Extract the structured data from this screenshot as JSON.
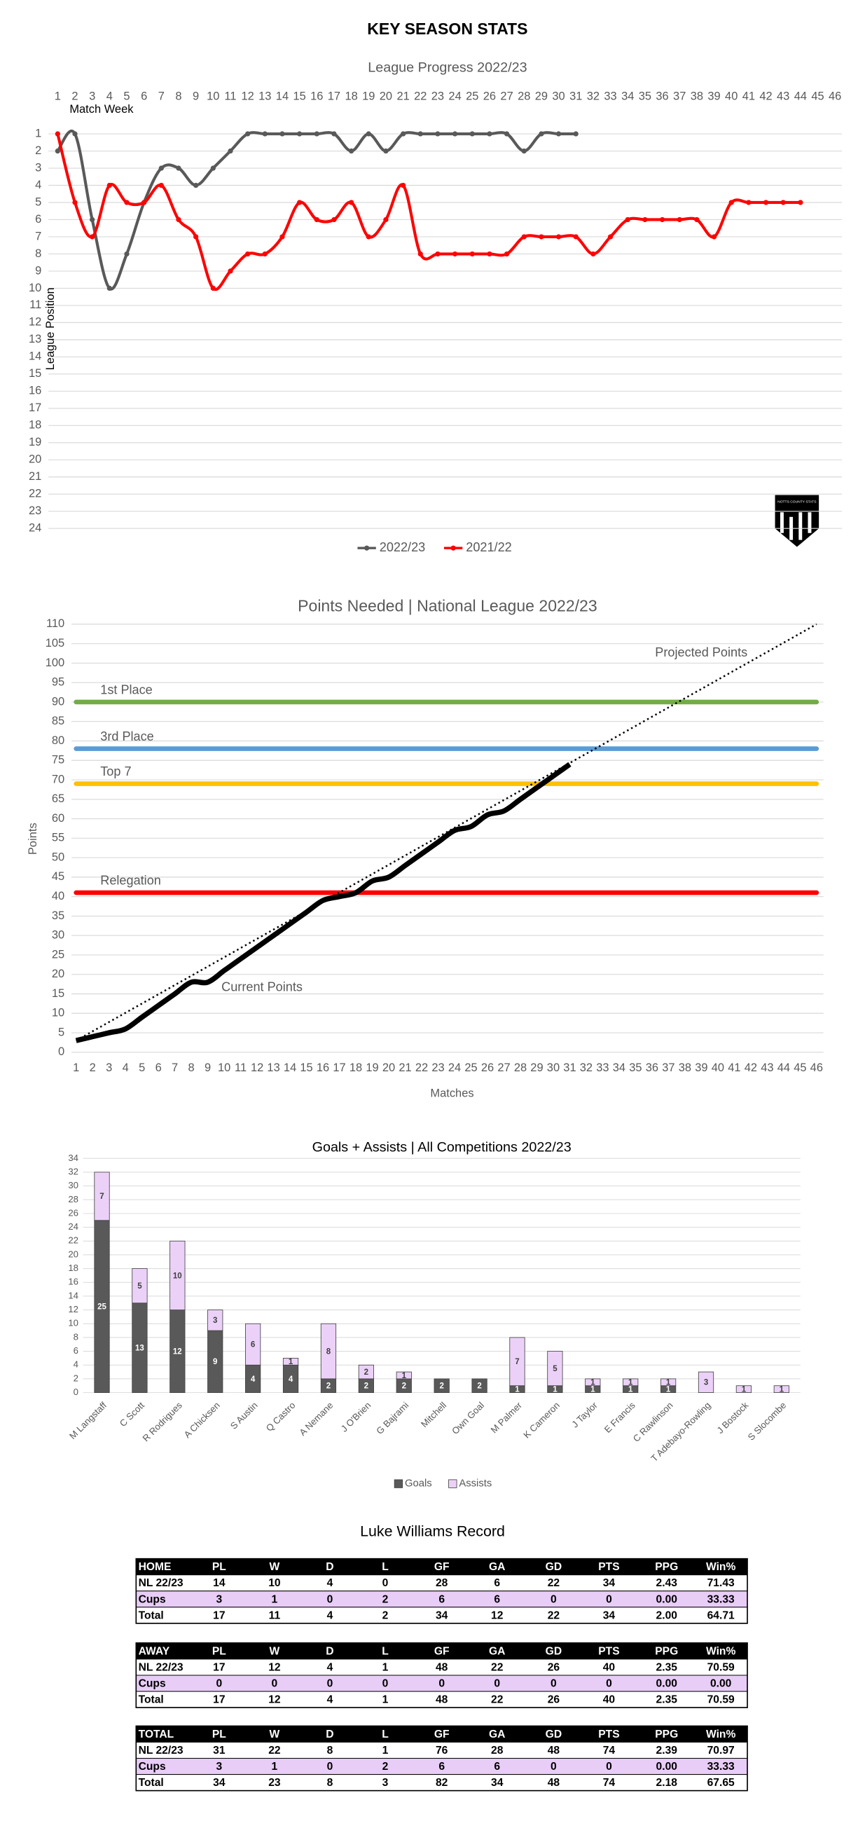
{
  "title": "KEY SEASON STATS",
  "chart_data": [
    {
      "type": "line",
      "title": "League Progress 2022/23",
      "x_label": "Match Week",
      "y_label": "League Position",
      "x": [
        1,
        2,
        3,
        4,
        5,
        6,
        7,
        8,
        9,
        10,
        11,
        12,
        13,
        14,
        15,
        16,
        17,
        18,
        19,
        20,
        21,
        22,
        23,
        24,
        25,
        26,
        27,
        28,
        29,
        30,
        31,
        32,
        33,
        34,
        35,
        36,
        37,
        38,
        39,
        40,
        41,
        42,
        43,
        44,
        45,
        46
      ],
      "xlim": [
        1,
        46
      ],
      "xticks": [
        1,
        2,
        3,
        4,
        5,
        6,
        7,
        8,
        9,
        10,
        11,
        12,
        13,
        14,
        15,
        16,
        17,
        18,
        19,
        20,
        21,
        22,
        23,
        24,
        25,
        26,
        27,
        28,
        29,
        30,
        31,
        32,
        33,
        34,
        35,
        36,
        37,
        38,
        39,
        40,
        41,
        42,
        43,
        44,
        45,
        46
      ],
      "ylim": [
        1,
        24
      ],
      "yticks": [
        1,
        2,
        3,
        4,
        5,
        6,
        7,
        8,
        9,
        10,
        11,
        12,
        13,
        14,
        15,
        16,
        17,
        18,
        19,
        20,
        21,
        22,
        23,
        24
      ],
      "y_inverted": true,
      "grid": true,
      "markers": true,
      "legend": "bottom",
      "logo_text": "NOTTS COUNTY STATS",
      "series": [
        {
          "name": "2022/23",
          "color": "#595959",
          "values": [
            2,
            1,
            6,
            10,
            8,
            5,
            3,
            3,
            4,
            3,
            2,
            1,
            1,
            1,
            1,
            1,
            1,
            2,
            1,
            2,
            1,
            1,
            1,
            1,
            1,
            1,
            1,
            2,
            1,
            1,
            1,
            null,
            null,
            null,
            null,
            null,
            null,
            null,
            null,
            null,
            null,
            null,
            null,
            null,
            null,
            null
          ]
        },
        {
          "name": "2021/22",
          "color": "#ff0000",
          "values": [
            1,
            5,
            7,
            4,
            5,
            5,
            4,
            6,
            7,
            10,
            9,
            8,
            8,
            7,
            5,
            6,
            6,
            5,
            7,
            6,
            4,
            8,
            8,
            8,
            8,
            8,
            8,
            7,
            7,
            7,
            7,
            8,
            7,
            6,
            6,
            6,
            6,
            6,
            7,
            5,
            5,
            5,
            5,
            5,
            null,
            null
          ]
        }
      ]
    },
    {
      "type": "line",
      "title": "Points Needed | National League 2022/23",
      "x_label": "Matches",
      "y_label": "Points",
      "x": [
        1,
        2,
        3,
        4,
        5,
        6,
        7,
        8,
        9,
        10,
        11,
        12,
        13,
        14,
        15,
        16,
        17,
        18,
        19,
        20,
        21,
        22,
        23,
        24,
        25,
        26,
        27,
        28,
        29,
        30,
        31,
        32,
        33,
        34,
        35,
        36,
        37,
        38,
        39,
        40,
        41,
        42,
        43,
        44,
        45,
        46
      ],
      "xlim": [
        1,
        46
      ],
      "xticks": [
        1,
        2,
        3,
        4,
        5,
        6,
        7,
        8,
        9,
        10,
        11,
        12,
        13,
        14,
        15,
        16,
        17,
        18,
        19,
        20,
        21,
        22,
        23,
        24,
        25,
        26,
        27,
        28,
        29,
        30,
        31,
        32,
        33,
        34,
        35,
        36,
        37,
        38,
        39,
        40,
        41,
        42,
        43,
        44,
        45,
        46
      ],
      "ylim": [
        0,
        110
      ],
      "yticks": [
        0,
        5,
        10,
        15,
        20,
        25,
        30,
        35,
        40,
        45,
        50,
        55,
        60,
        65,
        70,
        75,
        80,
        85,
        90,
        95,
        100,
        105,
        110
      ],
      "grid": true,
      "reference_lines": [
        {
          "label": "1st Place",
          "value": 90,
          "color": "#70ad47"
        },
        {
          "label": "3rd Place",
          "value": 78,
          "color": "#5b9bd5"
        },
        {
          "label": "Top 7",
          "value": 69,
          "color": "#ffc000"
        },
        {
          "label": "Relegation",
          "value": 41,
          "color": "#ff0000"
        }
      ],
      "series": [
        {
          "name": "Current Points",
          "color": "#000000",
          "values": [
            3,
            4,
            5,
            6,
            9,
            12,
            15,
            18,
            18,
            21,
            24,
            27,
            30,
            33,
            36,
            39,
            40,
            41,
            44,
            45,
            48,
            51,
            54,
            57,
            58,
            61,
            62,
            65,
            68,
            71,
            74,
            null,
            null,
            null,
            null,
            null,
            null,
            null,
            null,
            null,
            null,
            null,
            null,
            null,
            null,
            null
          ]
        }
      ],
      "trend": {
        "name": "Projected Points",
        "color": "#000000",
        "x": [
          1,
          46
        ],
        "values": [
          3,
          110
        ]
      }
    },
    {
      "type": "bar",
      "stacked": true,
      "title": "Goals + Assists | All Competitions 2022/23",
      "categories": [
        "M Langstaff",
        "C Scott",
        "R Rodrigues",
        "A Chicksen",
        "S Austin",
        "Q Castro",
        "A Nemane",
        "J O'Brien",
        "G Bajrami",
        "Mitchell",
        "Own Goal",
        "M Palmer",
        "K Cameron",
        "J Taylor",
        "E Francis",
        "C Rawlinson",
        "T Adebayo-Rowling",
        "J Bostock",
        "S Slocombe"
      ],
      "ylim": [
        0,
        34
      ],
      "yticks": [
        0,
        2,
        4,
        6,
        8,
        10,
        12,
        14,
        16,
        18,
        20,
        22,
        24,
        26,
        28,
        30,
        32,
        34
      ],
      "grid": true,
      "legend": "bottom",
      "series": [
        {
          "name": "Goals",
          "color": "#595959",
          "values": [
            25,
            13,
            12,
            9,
            4,
            4,
            2,
            2,
            2,
            2,
            2,
            1,
            1,
            1,
            1,
            1,
            0,
            0,
            0
          ]
        },
        {
          "name": "Assists",
          "color": "#ebd1f7",
          "values": [
            7,
            5,
            10,
            3,
            6,
            1,
            8,
            2,
            1,
            0,
            0,
            7,
            5,
            1,
            1,
            1,
            3,
            1,
            1
          ]
        }
      ]
    }
  ],
  "table": {
    "title": "Luke Williams Record",
    "blocks": [
      {
        "header": [
          "HOME",
          "PL",
          "W",
          "D",
          "L",
          "GF",
          "GA",
          "GD",
          "PTS",
          "PPG",
          "Win%"
        ],
        "rows": [
          [
            "NL 22/23",
            "14",
            "10",
            "4",
            "0",
            "28",
            "6",
            "22",
            "34",
            "2.43",
            "71.43"
          ],
          [
            "Cups",
            "3",
            "1",
            "0",
            "2",
            "6",
            "6",
            "0",
            "0",
            "0.00",
            "33.33"
          ],
          [
            "Total",
            "17",
            "11",
            "4",
            "2",
            "34",
            "12",
            "22",
            "34",
            "2.00",
            "64.71"
          ]
        ]
      },
      {
        "header": [
          "AWAY",
          "PL",
          "W",
          "D",
          "L",
          "GF",
          "GA",
          "GD",
          "PTS",
          "PPG",
          "Win%"
        ],
        "rows": [
          [
            "NL 22/23",
            "17",
            "12",
            "4",
            "1",
            "48",
            "22",
            "26",
            "40",
            "2.35",
            "70.59"
          ],
          [
            "Cups",
            "0",
            "0",
            "0",
            "0",
            "0",
            "0",
            "0",
            "0",
            "0.00",
            "0.00"
          ],
          [
            "Total",
            "17",
            "12",
            "4",
            "1",
            "48",
            "22",
            "26",
            "40",
            "2.35",
            "70.59"
          ]
        ]
      },
      {
        "header": [
          "TOTAL",
          "PL",
          "W",
          "D",
          "L",
          "GF",
          "GA",
          "GD",
          "PTS",
          "PPG",
          "Win%"
        ],
        "rows": [
          [
            "NL 22/23",
            "31",
            "22",
            "8",
            "1",
            "76",
            "28",
            "48",
            "74",
            "2.39",
            "70.97"
          ],
          [
            "Cups",
            "3",
            "1",
            "0",
            "2",
            "6",
            "6",
            "0",
            "0",
            "0.00",
            "33.33"
          ],
          [
            "Total",
            "34",
            "23",
            "8",
            "3",
            "82",
            "34",
            "48",
            "74",
            "2.18",
            "67.65"
          ]
        ]
      }
    ]
  }
}
